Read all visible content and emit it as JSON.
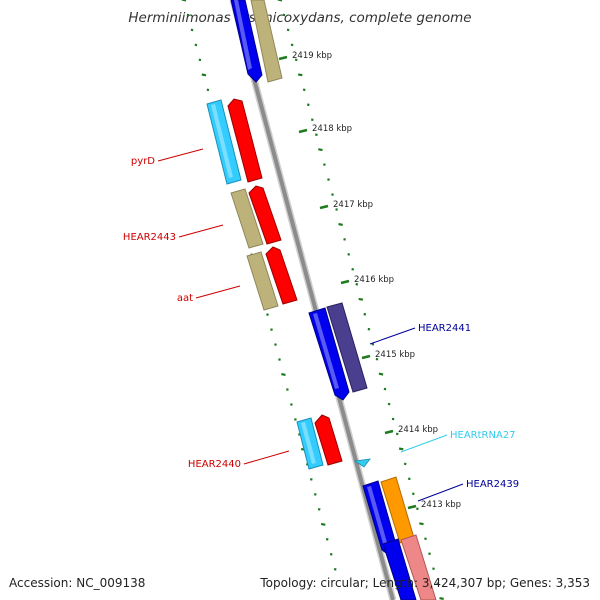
{
  "title": "Herminiimonas arsenicoxydans, complete genome",
  "accession_text": "Accession: NC_009138",
  "summary_text": "Topology: circular; Length: 3,424,307 bp; Genes: 3,353",
  "colors": {
    "backbone": "#8c8c8c",
    "tick": "#1e7a1e",
    "forward_gene": "#0000ee",
    "forward_gene_dark": "#4a3f8f",
    "reverse_gene": "#ff0000",
    "cds_khaki": "#bdb37a",
    "cds_cyan": "#33ccff",
    "trna": "#33ccee",
    "orange": "#ff9900",
    "pink": "#ee8888",
    "label_red": "#cc0000",
    "label_blue": "#000099",
    "label_cyan": "#33ccee"
  },
  "ticks": [
    {
      "label": "2419 kbp"
    },
    {
      "label": "2418 kbp"
    },
    {
      "label": "2417 kbp"
    },
    {
      "label": "2416 kbp"
    },
    {
      "label": "2415 kbp"
    },
    {
      "label": "2414 kbp"
    },
    {
      "label": "2413 kbp"
    }
  ],
  "gene_labels": [
    {
      "name": "pyrD",
      "strand": "reverse"
    },
    {
      "name": "HEAR2443",
      "strand": "reverse"
    },
    {
      "name": "aat",
      "strand": "reverse"
    },
    {
      "name": "HEAR2441",
      "strand": "forward"
    },
    {
      "name": "HEAR2440",
      "strand": "reverse"
    },
    {
      "name": "HEARtRNA27",
      "strand": "forward"
    },
    {
      "name": "HEAR2439",
      "strand": "forward"
    }
  ]
}
